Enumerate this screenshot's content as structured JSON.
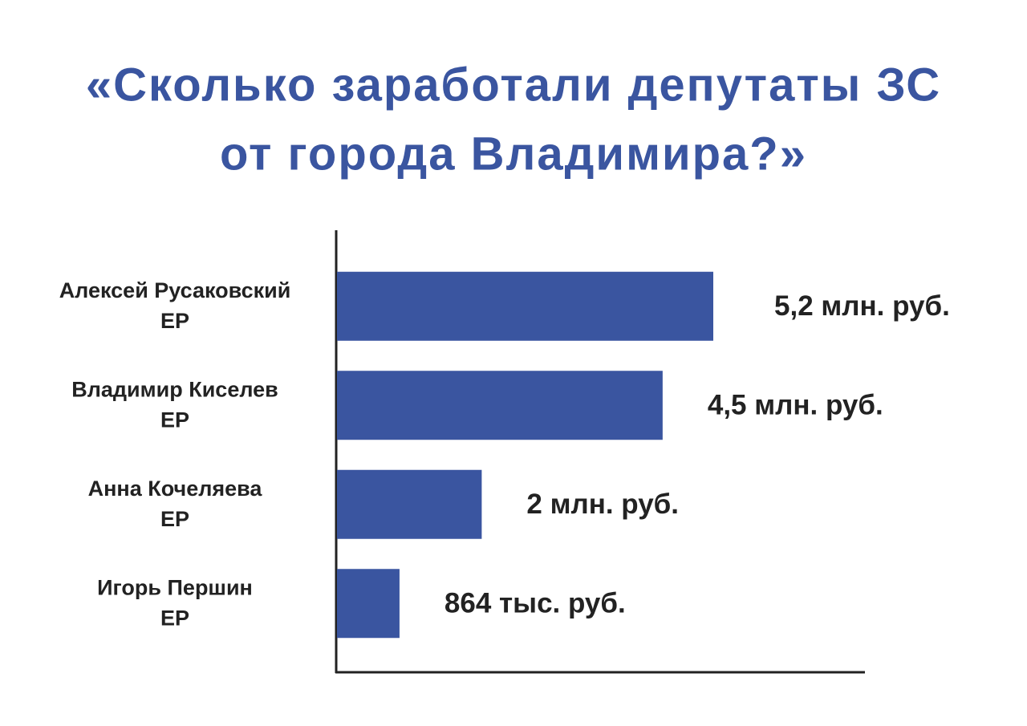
{
  "chart_data": {
    "type": "bar",
    "orientation": "horizontal",
    "title": [
      "«Сколько заработали депутаты ЗС",
      "от города Владимира?»"
    ],
    "categories": [
      "Алексей Русаковский",
      "Владимир Киселев",
      "Анна Кочеляева",
      "Игорь Першин"
    ],
    "parties": [
      "ЕР",
      "ЕР",
      "ЕР",
      "ЕР"
    ],
    "values": [
      5200000,
      4500000,
      2000000,
      864000
    ],
    "value_labels": [
      "5,2 млн. руб.",
      "4,5 млн. руб.",
      "2 млн. руб.",
      "864 тыс. руб."
    ],
    "color": "#3a55a0"
  }
}
